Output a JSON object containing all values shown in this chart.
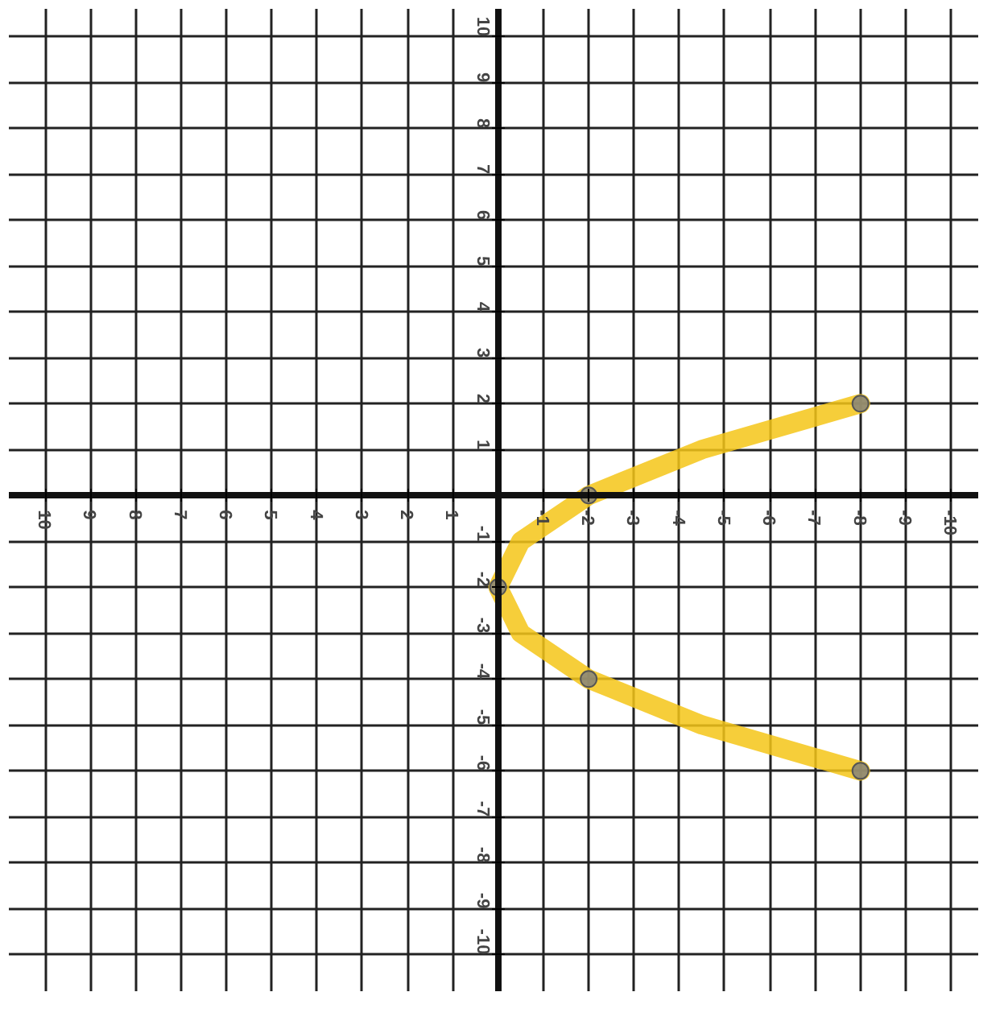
{
  "chart_data": {
    "type": "line",
    "xlim": [
      10.8,
      -10.6
    ],
    "ylim": [
      -10.8,
      10.6
    ],
    "xticks": [
      10,
      9,
      8,
      7,
      6,
      5,
      4,
      3,
      2,
      1,
      -1,
      -2,
      -3,
      -4,
      -5,
      -6,
      -7,
      -8,
      -9,
      -10
    ],
    "yticks": [
      10,
      9,
      8,
      7,
      6,
      5,
      4,
      3,
      2,
      1,
      -1,
      -2,
      -3,
      -4,
      -5,
      -6,
      -7,
      -8,
      -9,
      -10
    ],
    "grid": true,
    "line_style": "solid",
    "series": [
      {
        "color": "#f5c518",
        "x": [
          -8,
          -4.5,
          -2,
          -0.5,
          0,
          -0.5,
          -2,
          -4.5,
          -8
        ],
        "values": [
          2,
          1,
          0,
          -1,
          -2,
          -3,
          -4,
          -5,
          -6
        ]
      },
      {
        "type": "scatter",
        "marker": "circle",
        "color": "#7f7f7f",
        "x": [
          -8,
          -2,
          0,
          -2,
          -8
        ],
        "values": [
          2,
          0,
          -2,
          -4,
          -6
        ]
      }
    ]
  }
}
